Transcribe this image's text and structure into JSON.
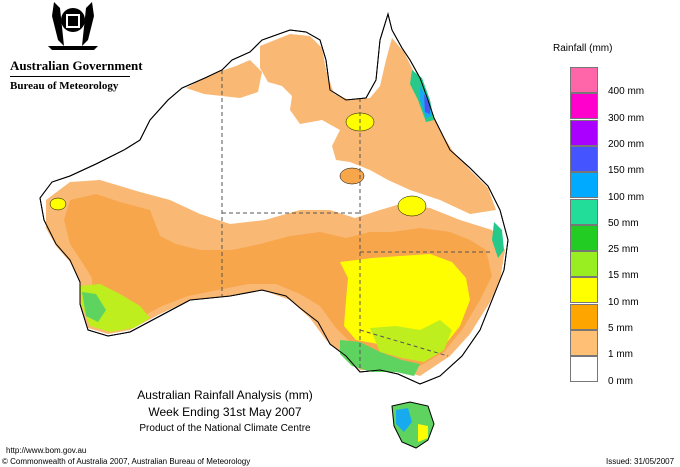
{
  "header": {
    "government": "Australian Government",
    "bureau": "Bureau of Meteorology"
  },
  "legend": {
    "title": "Rainfall (mm)",
    "items": [
      {
        "label": "",
        "color": "#ff66aa"
      },
      {
        "label": "400 mm",
        "color": "#ff00cc"
      },
      {
        "label": "300 mm",
        "color": "#aa00ff"
      },
      {
        "label": "200 mm",
        "color": "#4455ff"
      },
      {
        "label": "150 mm",
        "color": "#00aaff"
      },
      {
        "label": "100 mm",
        "color": "#22dd99"
      },
      {
        "label": "50 mm",
        "color": "#22cc22"
      },
      {
        "label": "25 mm",
        "color": "#99ee22"
      },
      {
        "label": "15 mm",
        "color": "#ffff00"
      },
      {
        "label": "10 mm",
        "color": "#ffa500"
      },
      {
        "label": "5 mm",
        "color": "#ffbf75"
      },
      {
        "label": "1 mm",
        "color": "#ffffff"
      },
      {
        "label": "0 mm",
        "color": ""
      }
    ]
  },
  "caption": {
    "line1": "Australian Rainfall Analysis (mm)",
    "line2": "Week Ending 31st May 2007",
    "line3": "Product of the National Climate Centre"
  },
  "footer": {
    "url": "http://www.bom.gov.au",
    "copyright": "© Commonwealth of Australia 2007, Australian Bureau of Meteorology",
    "issued": "Issued: 31/05/2007"
  },
  "colors": {
    "one_mm": "#f9b874",
    "five_mm": "#f7a64c",
    "ten_mm": "#fefe00",
    "fifteen_mm": "#bfee1e",
    "twentyfive_mm": "#5fd35f",
    "fifty_mm": "#27c98a",
    "hundred_mm": "#18aaee",
    "onefifty_mm": "#4a55ee",
    "twohundred_mm": "#aa22ee"
  }
}
